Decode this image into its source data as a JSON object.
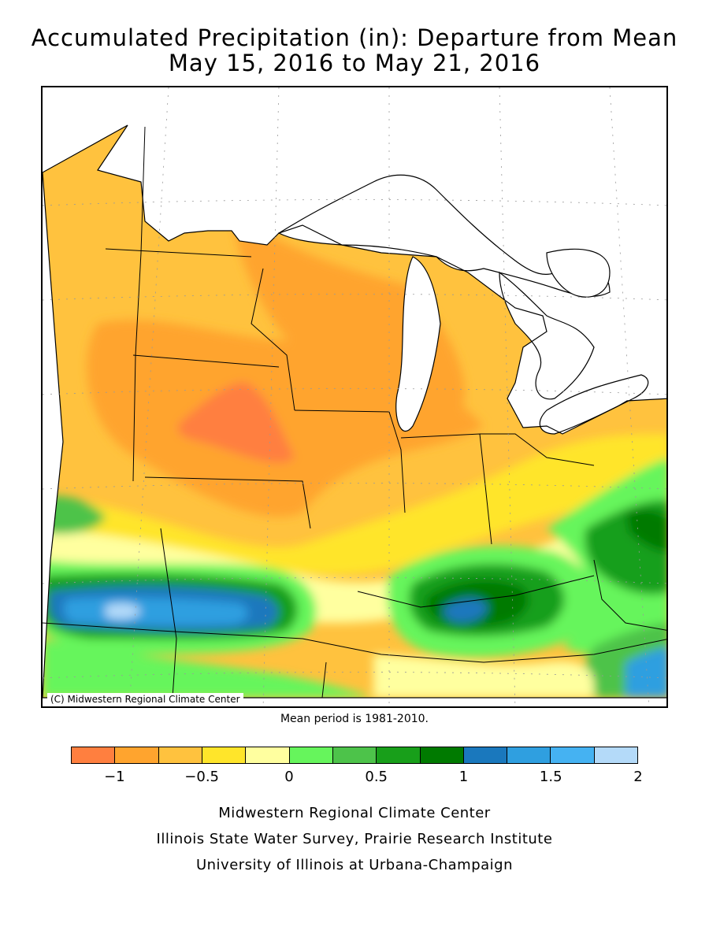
{
  "title": {
    "line1": "Accumulated Precipitation (in): Departure from Mean",
    "line2": "May 15, 2016 to May 21, 2016"
  },
  "map": {
    "credit": "(C) Midwestern Regional Climate Center",
    "mean_note": "Mean period is 1981-2010."
  },
  "legend": {
    "colors": [
      "#ff7f3f",
      "#ffa42e",
      "#ffc23e",
      "#ffe52a",
      "#ffff9f",
      "#66f55c",
      "#4dc34a",
      "#189f1a",
      "#007a00",
      "#1a78bd",
      "#2f9fe0",
      "#45b2f2",
      "#b4daf9"
    ],
    "tick_labels": [
      "−1",
      "−0.5",
      "0",
      "0.5",
      "1",
      "1.5",
      "2"
    ],
    "tick_values": [
      -1,
      -0.5,
      0,
      0.5,
      1,
      1.5,
      2
    ]
  },
  "footer": {
    "line1": "Midwestern Regional Climate Center",
    "line2": "Illinois State Water Survey, Prairie Research Institute",
    "line3": "University of Illinois at Urbana-Champaign"
  }
}
